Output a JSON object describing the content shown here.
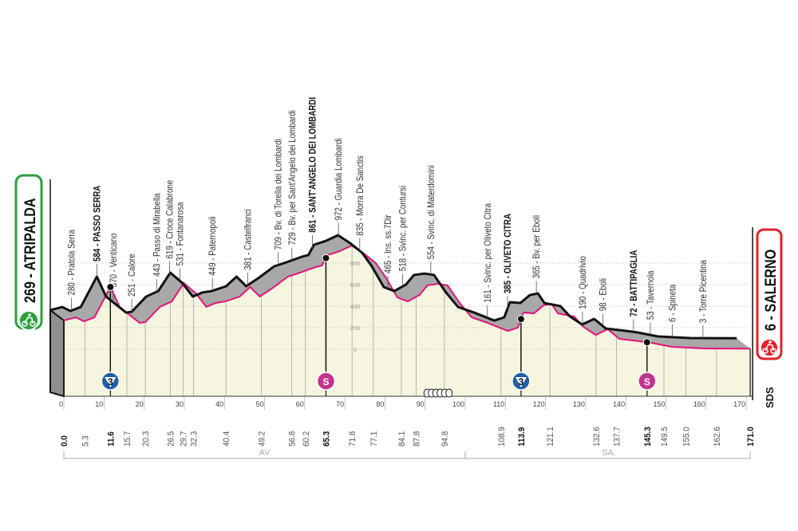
{
  "start": {
    "label": "269 - ATRIPALDA",
    "color": "#2e9e3e",
    "icon": "cyclist-start-icon"
  },
  "finish": {
    "label": "6 - SALERNO",
    "color": "#e0212b",
    "icon": "cyclist-finish-icon"
  },
  "brand": "SDS",
  "provinces": [
    {
      "label": "AV",
      "from_km": 0,
      "to_km": 100
    },
    {
      "label": "SA",
      "from_km": 100,
      "to_km": 171
    }
  ],
  "colors": {
    "profile_line": "#e4137b",
    "surface": "#f6f5df",
    "road_side": "#a8a8a8",
    "climb_badge": "#1f5fa8",
    "sprint_badge": "#c3348f"
  },
  "markers": [
    {
      "type": "climb",
      "label": "3",
      "km": 11.6
    },
    {
      "type": "sprint",
      "label": "S",
      "km": 65.3
    },
    {
      "type": "climb",
      "label": "3",
      "km": 113.9
    },
    {
      "type": "sprint",
      "label": "S",
      "km": 145.3
    }
  ],
  "feed_zone_icon": "feed-zone-icon",
  "chart_data": {
    "type": "area",
    "title": "",
    "xlabel": "",
    "ylabel": "",
    "xlim": [
      0,
      171
    ],
    "ylim": [
      0,
      1000
    ],
    "x_ticks": [
      "0",
      "10",
      "20",
      "30",
      "40",
      "50",
      "60",
      "70",
      "80",
      "90",
      "100",
      "110",
      "120",
      "130",
      "140",
      "150",
      "160",
      "170"
    ],
    "y_ticks": [
      "0",
      "200",
      "400",
      "600",
      "800"
    ],
    "grid": "dotted horizontal",
    "profile": [
      [
        0,
        267
      ],
      [
        3,
        296
      ],
      [
        5,
        259
      ],
      [
        7.6,
        296
      ],
      [
        11.6,
        578
      ],
      [
        13.9,
        393
      ],
      [
        15.9,
        333
      ],
      [
        18.9,
        244
      ],
      [
        20.3,
        252
      ],
      [
        23.9,
        393
      ],
      [
        26.9,
        444
      ],
      [
        29.9,
        615
      ],
      [
        32.9,
        519
      ],
      [
        35.5,
        393
      ],
      [
        37.8,
        430
      ],
      [
        40.2,
        444
      ],
      [
        43.8,
        489
      ],
      [
        46.4,
        578
      ],
      [
        48.8,
        489
      ],
      [
        51.8,
        563
      ],
      [
        55.8,
        674
      ],
      [
        58.8,
        711
      ],
      [
        62.7,
        763
      ],
      [
        64.3,
        778
      ],
      [
        65.7,
        874
      ],
      [
        68.7,
        911
      ],
      [
        71.7,
        963
      ],
      [
        74.7,
        889
      ],
      [
        77.7,
        800
      ],
      [
        80.1,
        674
      ],
      [
        83.1,
        481
      ],
      [
        85.7,
        444
      ],
      [
        88.6,
        504
      ],
      [
        90.6,
        593
      ],
      [
        93.2,
        607
      ],
      [
        95.6,
        593
      ],
      [
        98.6,
        430
      ],
      [
        101.6,
        296
      ],
      [
        105.6,
        244
      ],
      [
        110.6,
        170
      ],
      [
        113.1,
        200
      ],
      [
        114.5,
        341
      ],
      [
        117.1,
        333
      ],
      [
        119.5,
        407
      ],
      [
        121.5,
        422
      ],
      [
        123.1,
        333
      ],
      [
        127.1,
        304
      ],
      [
        129.5,
        207
      ],
      [
        132.5,
        133
      ],
      [
        135.5,
        185
      ],
      [
        138.4,
        96
      ],
      [
        143.4,
        74
      ],
      [
        146.4,
        59
      ],
      [
        151.4,
        22
      ],
      [
        159.4,
        7
      ],
      [
        171,
        6
      ]
    ],
    "places": [
      {
        "label": "269 - ATRIPALDA",
        "km": "0.0",
        "bold": true,
        "start": true
      },
      {
        "label": "280 - Pratola Serra",
        "km": "5.3",
        "bold": false
      },
      {
        "label": "584 - PASSO SERRA",
        "km": "11.6",
        "bold": true
      },
      {
        "label": "370 - Venticano",
        "km": "15.7",
        "bold": false
      },
      {
        "label": "251 - Calore",
        "km": "20.3",
        "bold": false
      },
      {
        "label": "443 - Passo di Mirabella",
        "km": "26.5",
        "bold": false
      },
      {
        "label": "619 - Croce Calabrone",
        "km": "29.7",
        "bold": false
      },
      {
        "label": "531 - Fontanarosa",
        "km": "32.3",
        "bold": false
      },
      {
        "label": "449 - Paternopoli",
        "km": "40.4",
        "bold": false
      },
      {
        "label": "381 - Castelfranci",
        "km": "49.2",
        "bold": false
      },
      {
        "label": "709 - Bv. di Torella dei Lombardi",
        "km": "56.8",
        "bold": false
      },
      {
        "label": "729 - Bv. per Sant'Angelo dei Lombardi",
        "km": "60.2",
        "bold": false
      },
      {
        "label": "861 - SANT'ANGELO DEI LOMBARDI",
        "km": "65.3",
        "bold": true
      },
      {
        "label": "972 - Guardia Lombardi",
        "km": "71.8",
        "bold": false
      },
      {
        "label": "835 - Morra De Sanctis",
        "km": "77.1",
        "bold": false
      },
      {
        "label": "465 - Ins. ss.7Dir",
        "km": "84.1",
        "bold": false
      },
      {
        "label": "518 - Svinc. per Contursi",
        "km": "87.8",
        "bold": false
      },
      {
        "label": "554 - Svinc. di Materdomini",
        "km": "94.8",
        "bold": false
      },
      {
        "label": "161 - Svinc. per Oliveto Citra",
        "km": "108.9",
        "bold": false
      },
      {
        "label": "385 - OLIVETO CITRA",
        "km": "113.9",
        "bold": true
      },
      {
        "label": "365 - Bv. per Eboli",
        "km": "121.1",
        "bold": false
      },
      {
        "label": "190 - Quadrivio",
        "km": "132.6",
        "bold": false
      },
      {
        "label": "98 - Eboli",
        "km": "137.7",
        "bold": false
      },
      {
        "label": "72 - BATTIPAGLIA",
        "km": "145.3",
        "bold": true
      },
      {
        "label": "53 - Tavernola",
        "km": "149.5",
        "bold": false
      },
      {
        "label": "6 - Spineta",
        "km": "155.0",
        "bold": false
      },
      {
        "label": "3 - Torre Picentina",
        "km": "162.6",
        "bold": false
      },
      {
        "label": "6 - SALERNO",
        "km": "171.0",
        "bold": true,
        "finish": true
      }
    ]
  }
}
